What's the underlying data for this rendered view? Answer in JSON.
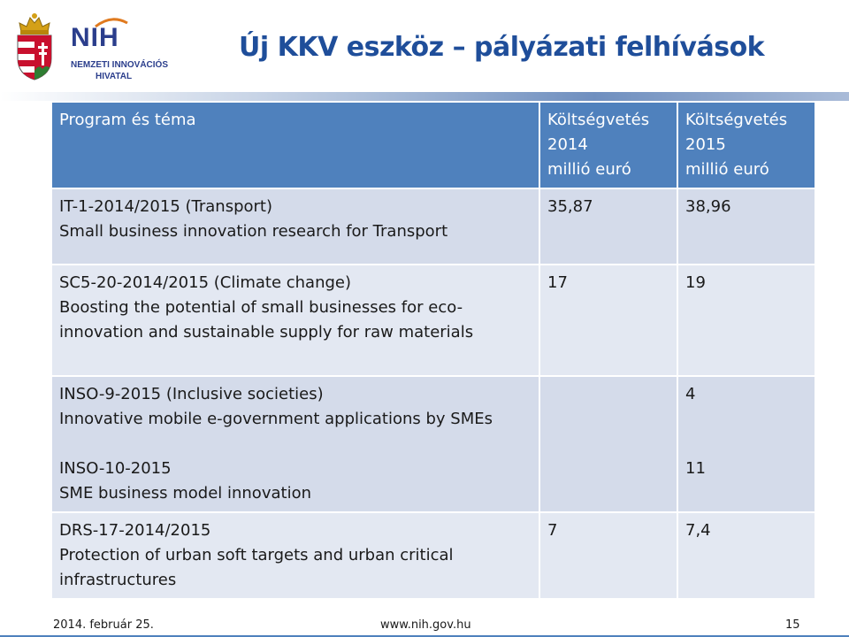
{
  "header": {
    "title": "Új KKV eszköz – pályázati felhívások",
    "logo": {
      "wordmark": "NIH",
      "line1": "NEMZETI INNOVÁCIÓS",
      "line2": "HIVATAL"
    }
  },
  "table": {
    "headers": {
      "program": "Program és téma",
      "budget2014": [
        "Költségvetés",
        "2014",
        "millió euró"
      ],
      "budget2015": [
        "Költségvetés",
        "2015",
        "millió euró"
      ]
    },
    "rows": [
      {
        "program": [
          "IT-1-2014/2015 (Transport)",
          "Small business innovation research for Transport"
        ],
        "budget2014": "35,87",
        "budget2015": "38,96"
      },
      {
        "program": [
          "SC5-20-2014/2015 (Climate change)",
          "Boosting the potential of small businesses for eco-",
          "innovation and sustainable supply  for raw materials"
        ],
        "budget2014": "17",
        "budget2015": "19"
      },
      {
        "program": [
          "INSO-9-2015 (Inclusive societies)",
          "Innovative mobile e-government applications by SMEs",
          "",
          "INSO-10-2015",
          "SME business model innovation"
        ],
        "budget2014": "",
        "budget2015": [
          "4",
          "",
          "",
          "11",
          ""
        ]
      },
      {
        "program": [
          "DRS-17-2014/2015",
          "Protection of urban soft targets and urban critical",
          "infrastructures"
        ],
        "budget2014": "7",
        "budget2015": "7,4"
      }
    ]
  },
  "footer": {
    "date": "2014. február 25.",
    "url": "www.nih.gov.hu",
    "page": "15"
  },
  "colors": {
    "title": "#1f4e9a",
    "header_fill": "#4f81bd",
    "row_fill_light": "#e3e8f2",
    "row_fill_dark": "#d4dbea"
  },
  "icons": {
    "crest": "hungarian-coat-of-arms-icon"
  }
}
